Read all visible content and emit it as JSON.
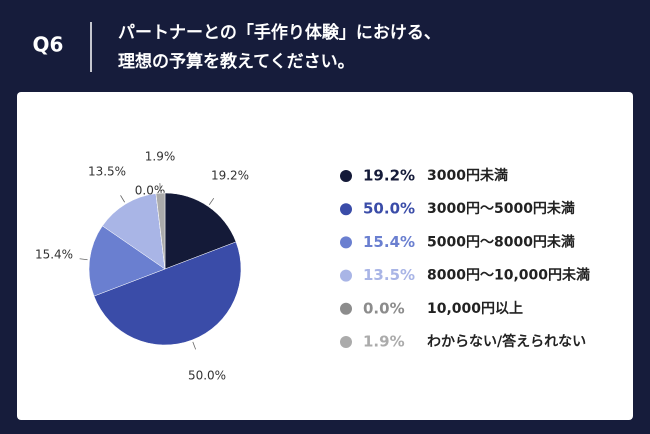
{
  "header": {
    "label": "Q6"
  },
  "chart_data": {
    "type": "pie",
    "title": [
      "パートナーとの「手作り体験」における、",
      "理想の予算を教えてください。"
    ],
    "categories": [
      "3000円未満",
      "3000円〜5000円未満",
      "5000円〜8000円未満",
      "8000円〜10,000円未満",
      "10,000円以上",
      "わからない/答えられない"
    ],
    "values": [
      19.2,
      50.0,
      15.4,
      13.5,
      0.0,
      1.9
    ],
    "value_labels": [
      "19.2%",
      "50.0%",
      "15.4%",
      "13.5%",
      "0.0%",
      "1.9%"
    ],
    "colors": [
      "#141a38",
      "#3a4ca8",
      "#6a7fd0",
      "#a9b5e6",
      "#8c8c8c",
      "#ababab"
    ]
  }
}
